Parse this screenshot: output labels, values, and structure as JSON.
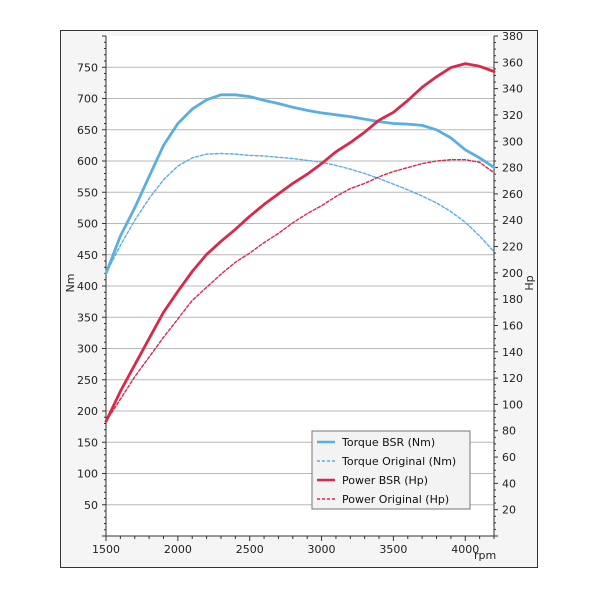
{
  "chart_data": {
    "type": "line",
    "x_unit_label": "rpm",
    "xlim": [
      1500,
      4200
    ],
    "x_ticks": [
      1500,
      2000,
      2500,
      3000,
      3500,
      4000
    ],
    "y_left": {
      "label": "Nm",
      "range": [
        0,
        800
      ],
      "ticks": [
        50,
        100,
        150,
        200,
        250,
        300,
        350,
        400,
        450,
        500,
        550,
        600,
        650,
        700,
        750
      ]
    },
    "y_right": {
      "label": "Hp",
      "range": [
        0,
        380
      ],
      "ticks": [
        20,
        40,
        60,
        80,
        100,
        120,
        140,
        160,
        180,
        200,
        220,
        240,
        260,
        280,
        300,
        320,
        340,
        360,
        380
      ]
    },
    "grid": "horizontal",
    "legend_position": "bottom-right",
    "series": [
      {
        "name": "Torque BSR (Nm)",
        "axis": "left",
        "style": "solid",
        "color": "#5aaee0",
        "x": [
          1500,
          1600,
          1700,
          1800,
          1900,
          2000,
          2100,
          2200,
          2300,
          2400,
          2500,
          2600,
          2700,
          2800,
          2900,
          3000,
          3100,
          3200,
          3300,
          3400,
          3500,
          3600,
          3700,
          3800,
          3900,
          4000,
          4100,
          4200
        ],
        "y": [
          420,
          480,
          525,
          575,
          625,
          660,
          683,
          698,
          706,
          706,
          703,
          697,
          692,
          686,
          681,
          677,
          674,
          671,
          667,
          663,
          660,
          659,
          657,
          650,
          637,
          618,
          605,
          590
        ]
      },
      {
        "name": "Torque Original (Nm)",
        "axis": "left",
        "style": "dashed",
        "color": "#5aaee0",
        "x": [
          1500,
          1600,
          1700,
          1800,
          1900,
          2000,
          2100,
          2200,
          2300,
          2400,
          2500,
          2600,
          2700,
          2800,
          2900,
          3000,
          3100,
          3200,
          3300,
          3400,
          3500,
          3600,
          3700,
          3800,
          3900,
          4000,
          4100,
          4200
        ],
        "y": [
          420,
          465,
          505,
          540,
          570,
          592,
          605,
          611,
          612,
          611,
          609,
          608,
          606,
          604,
          601,
          598,
          593,
          587,
          580,
          572,
          563,
          554,
          544,
          533,
          519,
          502,
          480,
          455
        ]
      },
      {
        "name": "Power BSR (Hp)",
        "axis": "right",
        "style": "solid",
        "color": "#d9284a",
        "x": [
          1500,
          1600,
          1700,
          1800,
          1900,
          2000,
          2100,
          2200,
          2300,
          2400,
          2500,
          2600,
          2700,
          2800,
          2900,
          3000,
          3100,
          3200,
          3300,
          3400,
          3500,
          3600,
          3700,
          3800,
          3900,
          4000,
          4100,
          4200
        ],
        "y": [
          87,
          110,
          130,
          150,
          170,
          186,
          201,
          214,
          224,
          233,
          243,
          252,
          260,
          268,
          275,
          283,
          292,
          299,
          307,
          316,
          322,
          331,
          341,
          349,
          356,
          359,
          357,
          353
        ]
      },
      {
        "name": "Power Original (Hp)",
        "axis": "right",
        "style": "dashed",
        "color": "#d9284a",
        "x": [
          1500,
          1600,
          1700,
          1800,
          1900,
          2000,
          2100,
          2200,
          2300,
          2400,
          2500,
          2600,
          2700,
          2800,
          2900,
          3000,
          3100,
          3200,
          3300,
          3400,
          3500,
          3600,
          3700,
          3800,
          3900,
          4000,
          4100,
          4200
        ],
        "y": [
          87,
          104,
          121,
          136,
          151,
          165,
          179,
          189,
          199,
          208,
          215,
          223,
          230,
          238,
          245,
          251,
          258,
          264,
          268,
          273,
          277,
          280,
          283,
          285,
          286,
          286,
          284,
          276
        ]
      }
    ]
  }
}
